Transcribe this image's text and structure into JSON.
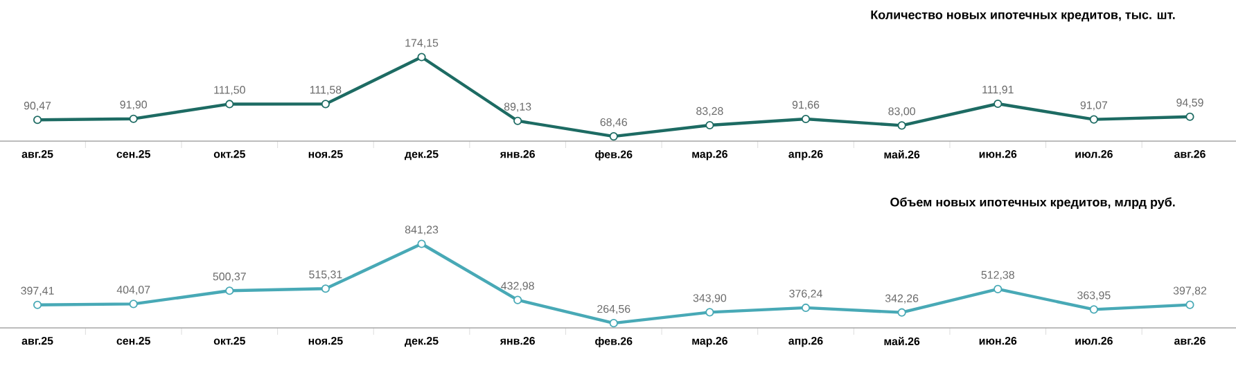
{
  "chart_data": [
    {
      "type": "line",
      "title": "Количество новых ипотечных кредитов, тыс. шт.",
      "categories": [
        "авг.25",
        "сен.25",
        "окт.25",
        "ноя.25",
        "дек.25",
        "янв.26",
        "фев.26",
        "мар.26",
        "апр.26",
        "май.26",
        "июн.26",
        "июл.26",
        "авг.26"
      ],
      "marker": "circle",
      "line_style": "solid",
      "series": [
        {
          "color": "#1d6b63",
          "values": [
            90.47,
            91.9,
            111.5,
            111.58,
            174.15,
            89.13,
            68.46,
            83.28,
            91.66,
            83.0,
            111.91,
            91.07,
            94.59
          ],
          "value_labels": [
            "90,47",
            "91,90",
            "111,50",
            "111,58",
            "174,15",
            "89,13",
            "68,46",
            "83,28",
            "91,66",
            "83,00",
            "111,91",
            "91,07",
            "94,59"
          ]
        }
      ]
    },
    {
      "type": "line",
      "title": "Объем новых ипотечных кредитов, млрд руб.",
      "categories": [
        "авг.25",
        "сен.25",
        "окт.25",
        "ноя.25",
        "дек.25",
        "янв.26",
        "фев.26",
        "мар.26",
        "апр.26",
        "май.26",
        "июн.26",
        "июл.26",
        "авг.26"
      ],
      "marker": "circle",
      "line_style": "solid",
      "series": [
        {
          "color": "#48a9b6",
          "values": [
            397.41,
            404.07,
            500.37,
            515.31,
            841.23,
            432.98,
            264.56,
            343.9,
            376.24,
            342.26,
            512.38,
            363.95,
            397.82
          ],
          "value_labels": [
            "397,41",
            "404,07",
            "500,37",
            "515,31",
            "841,23",
            "432,98",
            "264,56",
            "343,90",
            "376,24",
            "342,26",
            "512,38",
            "363,95",
            "397,82"
          ]
        }
      ]
    }
  ]
}
